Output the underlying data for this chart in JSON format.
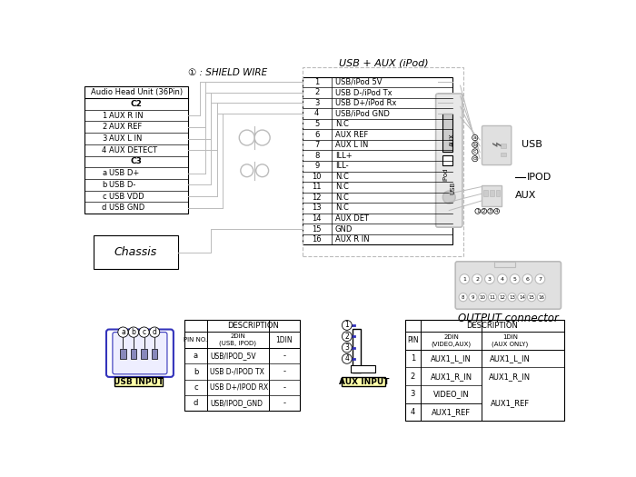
{
  "bg_color": "#ffffff",
  "line_color": "#000000",
  "gray_color": "#bbbbbb",
  "dark_gray": "#888888",
  "blue_color": "#3333bb",
  "yellow_color": "#ffffaa",
  "shield_wire_label": "① : SHIELD WIRE",
  "usb_aux_label": "USB + AUX (iPod)",
  "head_unit_title": "Audio Head Unit (36Pin)",
  "head_unit_rows": [
    [
      "",
      "C2"
    ],
    [
      "1",
      "AUX R IN"
    ],
    [
      "2",
      "AUX REF"
    ],
    [
      "3",
      "AUX L IN"
    ],
    [
      "4",
      "AUX DETECT"
    ],
    [
      "",
      "C3"
    ],
    [
      "a",
      "USB D+"
    ],
    [
      "b",
      "USB D-"
    ],
    [
      "c",
      "USB VDD"
    ],
    [
      "d",
      "USB GND"
    ]
  ],
  "center_pins": [
    [
      "1",
      "USB/iPod 5V"
    ],
    [
      "2",
      "USB D-/iPod Tx"
    ],
    [
      "3",
      "USB D+/iPod Rx"
    ],
    [
      "4",
      "USB/iPod GND"
    ],
    [
      "5",
      "N.C"
    ],
    [
      "6",
      "AUX REF"
    ],
    [
      "7",
      "AUX L IN"
    ],
    [
      "8",
      "ILL+"
    ],
    [
      "9",
      "ILL-"
    ],
    [
      "10",
      "N.C"
    ],
    [
      "11",
      "N.C"
    ],
    [
      "12",
      "N.C"
    ],
    [
      "13",
      "N.C"
    ],
    [
      "14",
      "AUX DET"
    ],
    [
      "15",
      "GND"
    ],
    [
      "16",
      "AUX R IN"
    ]
  ],
  "usb_table": {
    "header1": "DESCRIPTION",
    "header2_c1": "PIN NO.",
    "header2_c2": "2DIN\n(USB, IPOD)",
    "header2_c3": "1DIN",
    "rows": [
      [
        "a",
        "USB/IPOD_5V",
        "-"
      ],
      [
        "b",
        "USB D-/IPOD TX",
        "-"
      ],
      [
        "c",
        "USB D+/IPOD RX",
        "-"
      ],
      [
        "d",
        "USB/IPOD_GND",
        "-"
      ]
    ]
  },
  "aux_table": {
    "header1": "DESCRIPTION",
    "header2_c1": "PIN",
    "header2_c2": "2DIN\n(VIDEO,AUX)",
    "header2_c3": "1DIN\n(AUX ONLY)",
    "rows": [
      [
        "1",
        "AUX1_L_IN",
        "AUX1_L_IN"
      ],
      [
        "2",
        "AUX1_R_IN",
        "AUX1_R_IN"
      ],
      [
        "3",
        "VIDEO_IN",
        ""
      ],
      [
        "4",
        "AUX1_REF",
        "AUX1_REF"
      ]
    ]
  },
  "output_top": [
    1,
    2,
    3,
    4,
    5,
    6,
    7
  ],
  "output_bot": [
    8,
    9,
    10,
    11,
    12,
    13,
    14,
    15,
    16
  ],
  "chassis_label": "Chassis",
  "usb_input_label": "USB INPUT",
  "aux_input_label": "AUX INPUT",
  "output_label": "OUTPUT connector",
  "usb_label": "USB",
  "ipod_label": "IPOD",
  "aux_label": "AUX"
}
